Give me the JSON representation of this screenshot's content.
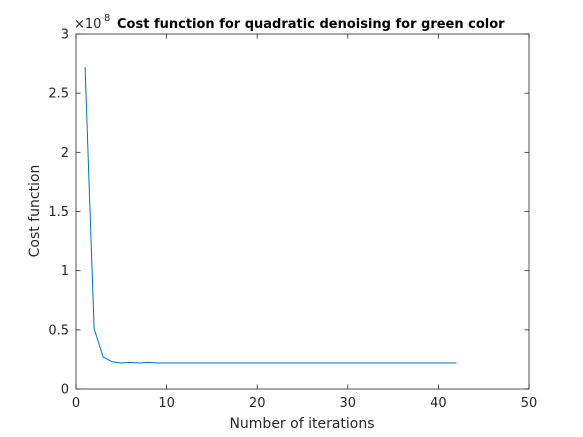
{
  "chart_data": {
    "type": "line",
    "title": "Cost function for quadratic denoising for green color",
    "xlabel": "Number of iterations",
    "ylabel": "Cost function",
    "y_multiplier_base": "×10",
    "y_multiplier_exp": "8",
    "xlim": [
      0,
      50
    ],
    "ylim": [
      0,
      3
    ],
    "xticks": [
      0,
      10,
      20,
      30,
      40,
      50
    ],
    "xtick_labels": [
      "0",
      "10",
      "20",
      "30",
      "40",
      "50"
    ],
    "yticks": [
      0,
      0.5,
      1,
      1.5,
      2,
      2.5,
      3
    ],
    "ytick_labels": [
      "0",
      "0.5",
      "1",
      "1.5",
      "2",
      "2.5",
      "3"
    ],
    "grid": false,
    "line_color": "#0072bd",
    "series": [
      {
        "x": [
          1,
          2,
          3,
          4,
          5,
          6,
          7,
          8,
          9,
          10,
          11,
          12,
          13,
          14,
          15,
          16,
          17,
          18,
          19,
          20,
          21,
          22,
          23,
          24,
          25,
          26,
          27,
          28,
          29,
          30,
          31,
          32,
          33,
          34,
          35,
          36,
          37,
          38,
          39,
          40,
          41,
          42
        ],
        "y": [
          2.72,
          0.51,
          0.27,
          0.23,
          0.22,
          0.225,
          0.22,
          0.225,
          0.22,
          0.22,
          0.22,
          0.22,
          0.22,
          0.22,
          0.22,
          0.22,
          0.22,
          0.22,
          0.22,
          0.22,
          0.22,
          0.22,
          0.22,
          0.22,
          0.22,
          0.22,
          0.22,
          0.22,
          0.22,
          0.22,
          0.22,
          0.22,
          0.22,
          0.22,
          0.22,
          0.22,
          0.22,
          0.22,
          0.22,
          0.22,
          0.22,
          0.22
        ]
      }
    ]
  }
}
